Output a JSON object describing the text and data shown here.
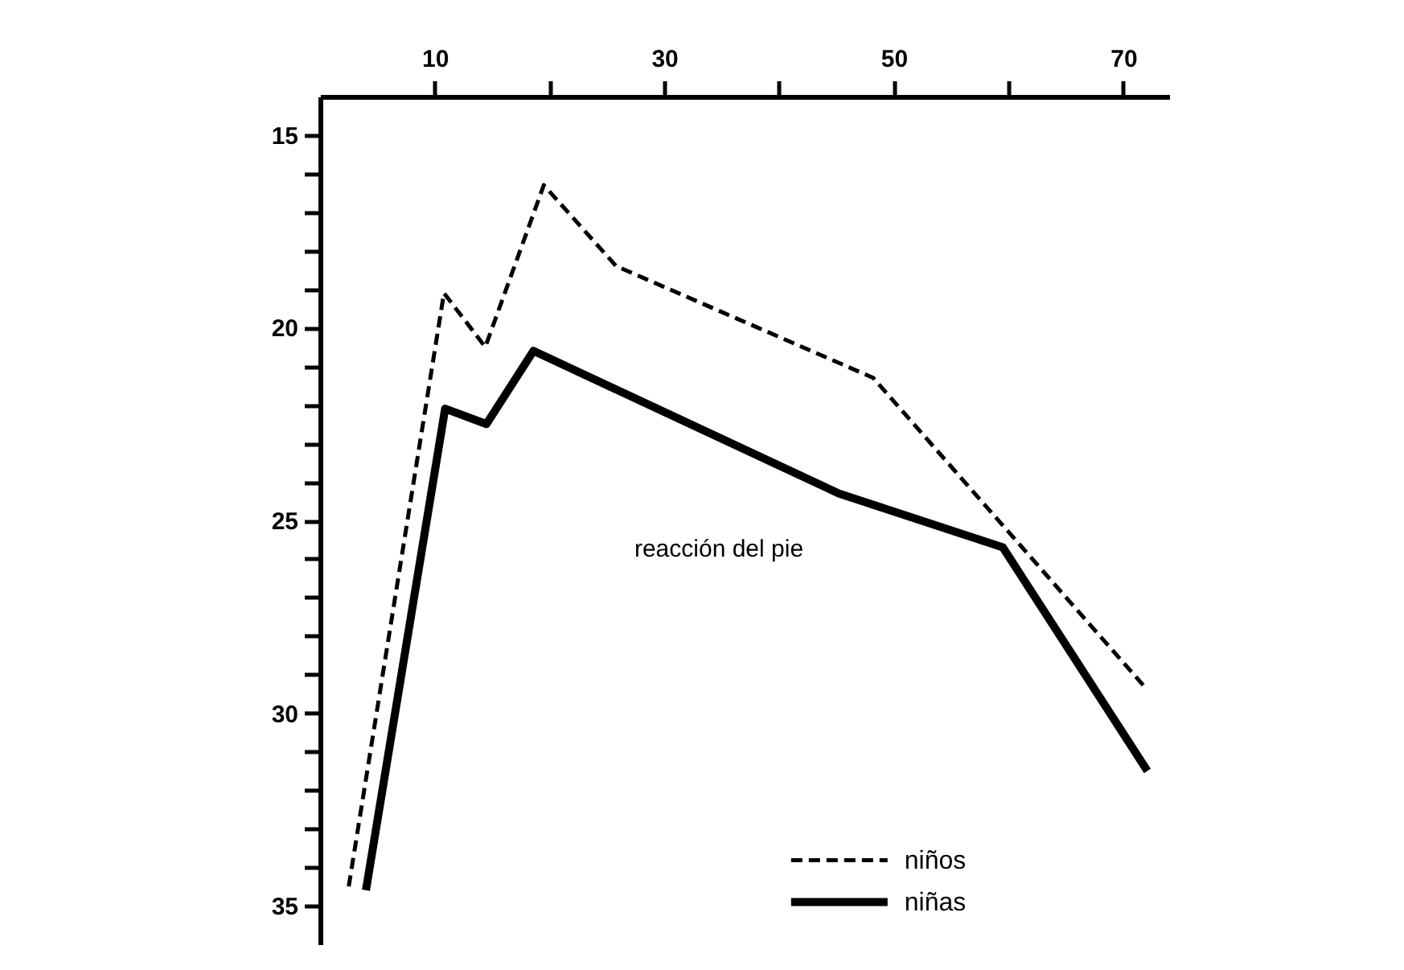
{
  "chart_data": {
    "type": "line",
    "annotations": [
      "reacción del pie"
    ],
    "xlim": [
      0,
      74
    ],
    "xticks": [
      10,
      {
        "value": 20,
        "label": null
      },
      30,
      {
        "value": 40,
        "label": null
      },
      50,
      {
        "value": 60,
        "label": null
      },
      70
    ],
    "ylim": [
      36,
      14
    ],
    "yticks": [
      15,
      {
        "value": 16,
        "label": null
      },
      {
        "value": 17,
        "label": null
      },
      {
        "value": 18,
        "label": null
      },
      {
        "value": 19,
        "label": null
      },
      20,
      {
        "value": 21,
        "label": null
      },
      {
        "value": 22,
        "label": null
      },
      {
        "value": 23,
        "label": null
      },
      {
        "value": 24,
        "label": null
      },
      25,
      {
        "value": 26,
        "label": null
      },
      {
        "value": 27,
        "label": null
      },
      {
        "value": 28,
        "label": null
      },
      {
        "value": 29,
        "label": null
      },
      30,
      {
        "value": 31,
        "label": null
      },
      {
        "value": 32,
        "label": null
      },
      {
        "value": 33,
        "label": null
      },
      {
        "value": 34,
        "label": null
      },
      35
    ],
    "grid": false,
    "legend": "bottom",
    "marker": "none",
    "series": [
      {
        "name": "niños",
        "color": "#000000",
        "line_style": "dashed",
        "x": [
          2.5,
          10.8,
          14.4,
          19.5,
          25.8,
          48.2,
          71.8
        ],
        "values": [
          34.5,
          19.1,
          20.5,
          16.3,
          18.4,
          21.3,
          29.3
        ]
      },
      {
        "name": "niñas",
        "color": "#000000",
        "line_style": "solid",
        "x": [
          4,
          10.9,
          14.5,
          18.6,
          45.2,
          59.5,
          72.1
        ],
        "values": [
          34.6,
          22.1,
          22.5,
          20.6,
          24.3,
          25.7,
          31.5
        ]
      }
    ]
  }
}
